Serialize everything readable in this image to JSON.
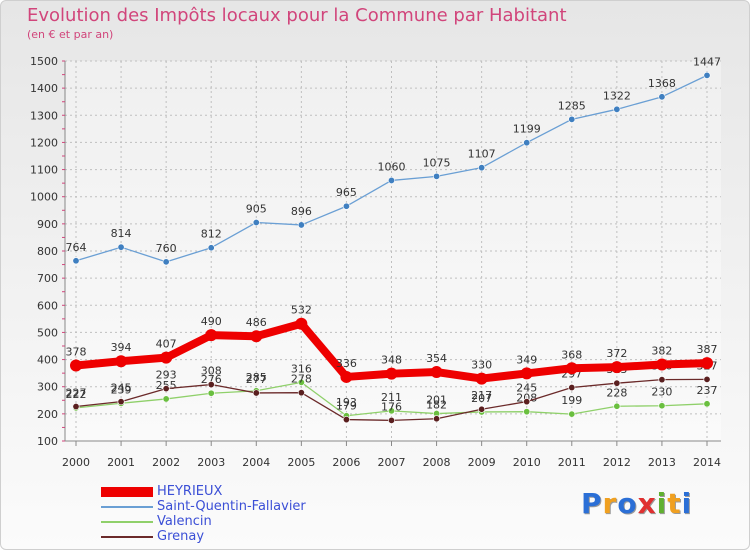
{
  "chart_data": {
    "type": "line",
    "title": "Evolution des Impôts locaux pour la Commune par Habitant",
    "subtitle": "(en € et par an)",
    "xlabel": "",
    "ylabel": "",
    "categories": [
      "2000",
      "2001",
      "2002",
      "2003",
      "2004",
      "2005",
      "2006",
      "2007",
      "2008",
      "2009",
      "2010",
      "2011",
      "2012",
      "2013",
      "2014"
    ],
    "ylim": [
      100,
      1500
    ],
    "yticks": [
      100,
      200,
      300,
      400,
      500,
      600,
      700,
      800,
      900,
      1000,
      1100,
      1200,
      1300,
      1400,
      1500
    ],
    "grid": true,
    "legend_position": "bottom-left",
    "series": [
      {
        "name": "Saint-Quentin-Fallavier",
        "color": "#6a9fd4",
        "marker": "#3f7fc0",
        "values": [
          764,
          814,
          760,
          812,
          905,
          896,
          965,
          1060,
          1075,
          1107,
          1199,
          1285,
          1322,
          1368,
          1447
        ]
      },
      {
        "name": "Valencin",
        "color": "#8fd06a",
        "marker": "#6abf3f",
        "values": [
          222,
          239,
          255,
          276,
          285,
          316,
          193,
          211,
          201,
          207,
          208,
          199,
          228,
          230,
          237
        ]
      },
      {
        "name": "Grenay",
        "color": "#6b2a2a",
        "marker": "#5a1f1f",
        "values": [
          227,
          245,
          293,
          308,
          277,
          278,
          179,
          176,
          182,
          217,
          245,
          297,
          313,
          326,
          327
        ]
      },
      {
        "name": "HEYRIEUX",
        "color": "#ee0000",
        "marker": "#ee0000",
        "values": [
          378,
          394,
          407,
          490,
          486,
          532,
          336,
          348,
          354,
          330,
          349,
          368,
          372,
          382,
          387
        ]
      }
    ]
  },
  "legend": {
    "items": [
      {
        "label": "HEYRIEUX",
        "color": "#ee0000"
      },
      {
        "label": "Saint-Quentin-Fallavier",
        "color": "#6a9fd4"
      },
      {
        "label": "Valencin",
        "color": "#8fd06a"
      },
      {
        "label": "Grenay",
        "color": "#6b2a2a"
      }
    ]
  },
  "brand": {
    "letters": [
      "P",
      "r",
      "o",
      "x",
      "i",
      "t",
      "i"
    ],
    "colors": [
      "#2b6fd6",
      "#f0a020",
      "#2b6fd6",
      "#e03030",
      "#60b030",
      "#f0a020",
      "#2b6fd6"
    ]
  }
}
